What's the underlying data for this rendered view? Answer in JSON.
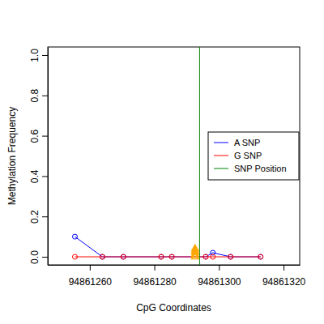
{
  "chart_data": {
    "type": "line",
    "x_label": "CpG Coordinates",
    "y_label": "Methylation Frequency",
    "xlim": [
      94861247,
      94861325
    ],
    "xticks": [
      94861260,
      94861280,
      94861300,
      94861320
    ],
    "ylim": [
      -0.04,
      1.04
    ],
    "yticks": [
      {
        "value": 0,
        "label": "0.0"
      },
      0.2,
      0.4,
      0.6,
      0.8,
      {
        "value": 1,
        "label": "1.0"
      }
    ],
    "legend": "right",
    "series": [
      {
        "name": "A SNP",
        "color": "blue",
        "type": "line",
        "marker": "circle",
        "line_style": "solid",
        "x": [
          94861255.4,
          94861263.9,
          94861270.4,
          94861282.1,
          94861285.4,
          94861295.9,
          94861298.1,
          94861303.6,
          94861312.9
        ],
        "values": [
          0.1,
          0,
          0,
          0,
          0,
          0,
          0.02,
          0,
          0
        ]
      },
      {
        "name": "G SNP",
        "color": "red",
        "type": "line",
        "marker": "circle",
        "line_style": "solid",
        "x": [
          94861255.4,
          94861263.9,
          94861270.4,
          94861282.1,
          94861285.4,
          94861295.9,
          94861298.1,
          94861303.6,
          94861312.9
        ],
        "values": [
          0,
          0,
          0,
          0,
          0,
          0,
          0,
          0,
          0
        ]
      },
      {
        "name": "SNP Position",
        "color": "green",
        "type": "vline",
        "line_style": "solid",
        "x": [
          94861294
        ]
      },
      {
        "color": "orange",
        "type": "scatter",
        "marker": "triangle",
        "x": [
          94861292.6,
          94861292.6,
          94861292.6,
          94861292.6,
          94861292.6
        ],
        "values": [
          0,
          0.01,
          0.02,
          0.03,
          0.04
        ]
      }
    ]
  }
}
